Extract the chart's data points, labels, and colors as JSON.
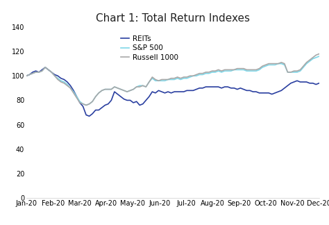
{
  "title": "Chart 1: Total Return Indexes",
  "ylim": [
    0,
    140
  ],
  "yticks": [
    0,
    20,
    40,
    60,
    80,
    100,
    120,
    140
  ],
  "xtick_labels": [
    "Jan-20",
    "Feb-20",
    "Mar-20",
    "Apr-20",
    "May-20",
    "Jun-20",
    "Jul-20",
    "Aug-20",
    "Sep-20",
    "Oct-20",
    "Nov-20",
    "Dec-20"
  ],
  "series": {
    "REITs": {
      "color": "#2a3fa0",
      "linewidth": 1.2,
      "data": [
        100,
        101,
        103,
        104,
        103,
        105,
        107,
        105,
        103,
        101,
        100,
        98,
        97,
        95,
        92,
        88,
        83,
        78,
        75,
        68,
        67,
        69,
        72,
        72,
        74,
        76,
        77,
        80,
        87,
        85,
        83,
        81,
        80,
        80,
        78,
        79,
        76,
        77,
        80,
        83,
        87,
        86,
        88,
        87,
        86,
        87,
        86,
        87,
        87,
        87,
        87,
        88,
        88,
        88,
        89,
        90,
        90,
        91,
        91,
        91,
        91,
        91,
        90,
        91,
        91,
        90,
        90,
        89,
        90,
        89,
        88,
        88,
        87,
        87,
        86,
        86,
        86,
        86,
        85,
        86,
        87,
        88,
        90,
        92,
        94,
        95,
        96,
        95,
        95,
        95,
        94,
        94,
        93,
        94
      ]
    },
    "S&P 500": {
      "color": "#7fd7e8",
      "linewidth": 1.2,
      "data": [
        100,
        101,
        102,
        103,
        103,
        104,
        107,
        105,
        103,
        100,
        98,
        96,
        95,
        93,
        90,
        87,
        83,
        79,
        77,
        76,
        77,
        79,
        83,
        86,
        88,
        89,
        89,
        89,
        91,
        90,
        89,
        88,
        87,
        88,
        89,
        91,
        92,
        92,
        91,
        95,
        98,
        96,
        96,
        96,
        96,
        97,
        97,
        97,
        98,
        97,
        98,
        98,
        99,
        100,
        100,
        101,
        101,
        102,
        102,
        103,
        103,
        104,
        103,
        104,
        104,
        104,
        105,
        105,
        105,
        105,
        104,
        104,
        104,
        104,
        105,
        107,
        108,
        109,
        109,
        109,
        110,
        110,
        109,
        103,
        103,
        103,
        103,
        104,
        107,
        110,
        112,
        114,
        115,
        116
      ]
    },
    "Russell 1000": {
      "color": "#a8a8a8",
      "linewidth": 1.2,
      "data": [
        100,
        101,
        102,
        103,
        103,
        104,
        107,
        105,
        103,
        100,
        97,
        95,
        94,
        92,
        90,
        86,
        82,
        78,
        77,
        76,
        77,
        79,
        83,
        86,
        88,
        89,
        89,
        89,
        91,
        90,
        89,
        88,
        87,
        88,
        89,
        91,
        91,
        92,
        91,
        95,
        99,
        97,
        96,
        97,
        97,
        97,
        98,
        98,
        99,
        98,
        99,
        99,
        100,
        100,
        101,
        102,
        102,
        103,
        103,
        104,
        104,
        105,
        104,
        105,
        105,
        105,
        105,
        106,
        106,
        106,
        105,
        105,
        105,
        105,
        106,
        108,
        109,
        110,
        110,
        110,
        110,
        111,
        110,
        103,
        103,
        104,
        104,
        105,
        108,
        111,
        113,
        115,
        117,
        118
      ]
    }
  },
  "background_color": "#ffffff",
  "title_fontsize": 11,
  "tick_fontsize": 7,
  "legend_fontsize": 7.5
}
